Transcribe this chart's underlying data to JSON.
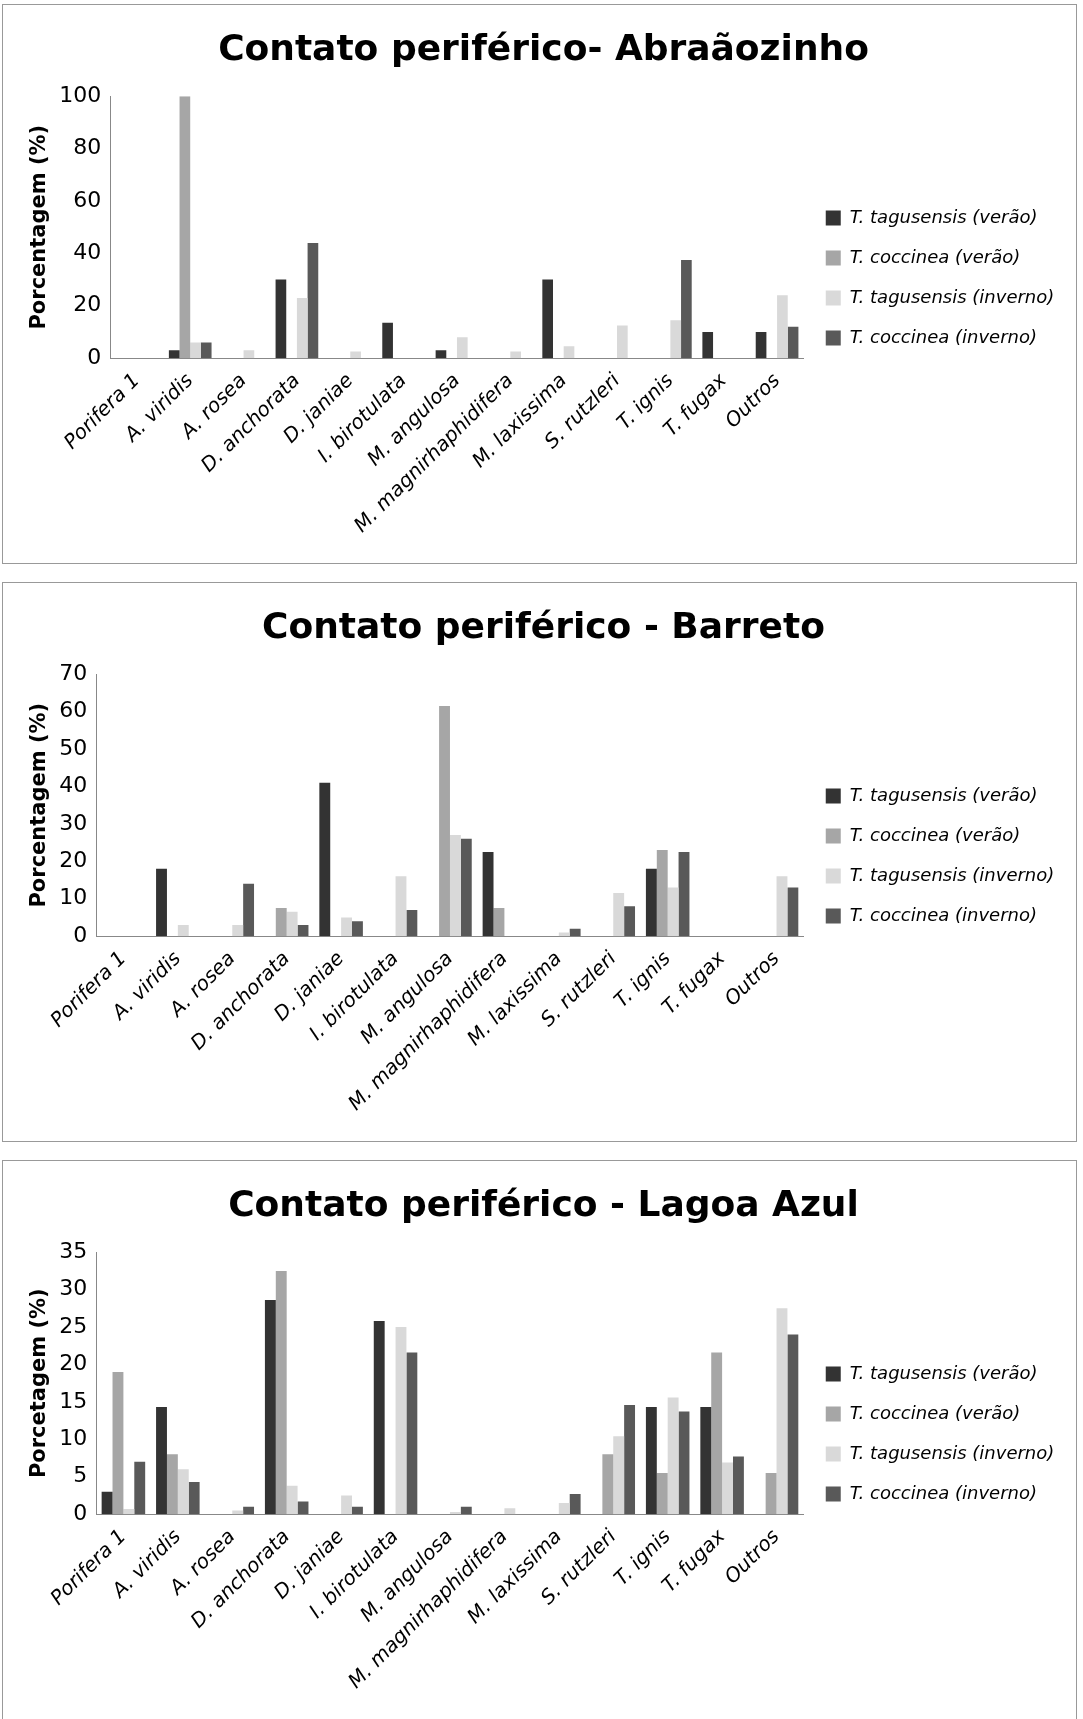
{
  "chart_data": [
    {
      "type": "bar",
      "title": "Contato periférico- Abraãozinho",
      "ylabel": "Porcentagem (%)",
      "categories": [
        "Porifera 1",
        "A. viridis",
        "A. rosea",
        "D. anchorata",
        "D. janiae",
        "I. birotulata",
        "M. angulosa",
        "M. magnirhaphidifera",
        "M. laxissima",
        "S. rutzleri",
        "T. ignis",
        "T. fugax",
        "Outros"
      ],
      "series": [
        {
          "name": "T. tagusensis (verão)",
          "color": "#333333",
          "values": [
            null,
            3,
            null,
            30,
            null,
            13.5,
            3,
            null,
            30,
            null,
            null,
            10,
            10
          ]
        },
        {
          "name": "T. coccinea (verão)",
          "color": "#a6a6a6",
          "values": [
            null,
            100,
            null,
            null,
            null,
            null,
            null,
            null,
            null,
            null,
            null,
            null,
            null
          ]
        },
        {
          "name": "T. tagusensis (inverno)",
          "color": "#d9d9d9",
          "values": [
            null,
            6,
            3,
            23,
            2.5,
            null,
            8,
            2.5,
            4.5,
            12.5,
            14.5,
            null,
            24
          ]
        },
        {
          "name": "T. coccinea (inverno)",
          "color": "#595959",
          "values": [
            null,
            6,
            null,
            44,
            null,
            null,
            null,
            null,
            null,
            null,
            37.5,
            null,
            12
          ]
        }
      ],
      "ylim": [
        0,
        100
      ],
      "yticks": [
        0,
        20,
        40,
        60,
        80,
        100
      ],
      "legend": "right"
    },
    {
      "type": "bar",
      "title": "Contato periférico - Barreto",
      "ylabel": "Porcentagem (%)",
      "categories": [
        "Porifera 1",
        "A. viridis",
        "A. rosea",
        "D. anchorata",
        "D. janiae",
        "I. birotulata",
        "M. angulosa",
        "M. magnirhaphidifera",
        "M. laxissima",
        "S. rutzleri",
        "T. ignis",
        "T. fugax",
        "Outros"
      ],
      "series": [
        {
          "name": "T. tagusensis (verão)",
          "color": "#333333",
          "values": [
            null,
            18,
            null,
            null,
            41,
            null,
            null,
            22.5,
            null,
            null,
            18,
            null,
            null
          ]
        },
        {
          "name": "T. coccinea (verão)",
          "color": "#a6a6a6",
          "values": [
            null,
            null,
            null,
            7.5,
            null,
            null,
            61.5,
            7.5,
            null,
            null,
            23,
            null,
            null
          ]
        },
        {
          "name": "T. tagusensis (inverno)",
          "color": "#d9d9d9",
          "values": [
            null,
            3,
            3,
            6.5,
            5,
            16,
            27,
            null,
            1,
            11.5,
            13,
            null,
            16
          ]
        },
        {
          "name": "T. coccinea (inverno)",
          "color": "#595959",
          "values": [
            null,
            null,
            14,
            3,
            4,
            7,
            26,
            null,
            2,
            8,
            22.5,
            null,
            13
          ]
        }
      ],
      "ylim": [
        0,
        70
      ],
      "yticks": [
        0,
        10,
        20,
        30,
        40,
        50,
        60,
        70
      ],
      "legend": "right"
    },
    {
      "type": "bar",
      "title": "Contato periférico - Lagoa Azul",
      "ylabel": "Porcetagem (%)",
      "categories": [
        "Porifera 1",
        "A. viridis",
        "A. rosea",
        "D. anchorata",
        "D. janiae",
        "I. birotulata",
        "M. angulosa",
        "M. magnirhaphidifera",
        "M. laxissima",
        "S. rutzleri",
        "T. ignis",
        "T. fugax",
        "Outros"
      ],
      "series": [
        {
          "name": "T. tagusensis (verão)",
          "color": "#333333",
          "values": [
            3,
            14.3,
            null,
            28.6,
            null,
            25.8,
            null,
            null,
            null,
            null,
            14.3,
            14.3,
            null
          ]
        },
        {
          "name": "T. coccinea (verão)",
          "color": "#a6a6a6",
          "values": [
            19,
            8,
            null,
            32.5,
            null,
            null,
            null,
            null,
            null,
            8,
            5.5,
            21.6,
            5.5
          ]
        },
        {
          "name": "T. tagusensis (inverno)",
          "color": "#d9d9d9",
          "values": [
            0.7,
            6,
            0.5,
            3.8,
            2.5,
            25,
            0.3,
            0.8,
            1.5,
            10.4,
            15.6,
            6.9,
            27.5
          ]
        },
        {
          "name": "T. coccinea (inverno)",
          "color": "#595959",
          "values": [
            7,
            4.3,
            1,
            1.7,
            1,
            21.6,
            1,
            null,
            2.7,
            14.6,
            13.7,
            7.7,
            24
          ]
        }
      ],
      "ylim": [
        0,
        35
      ],
      "yticks": [
        0,
        5,
        10,
        15,
        20,
        25,
        30,
        35
      ],
      "legend": "right"
    }
  ]
}
